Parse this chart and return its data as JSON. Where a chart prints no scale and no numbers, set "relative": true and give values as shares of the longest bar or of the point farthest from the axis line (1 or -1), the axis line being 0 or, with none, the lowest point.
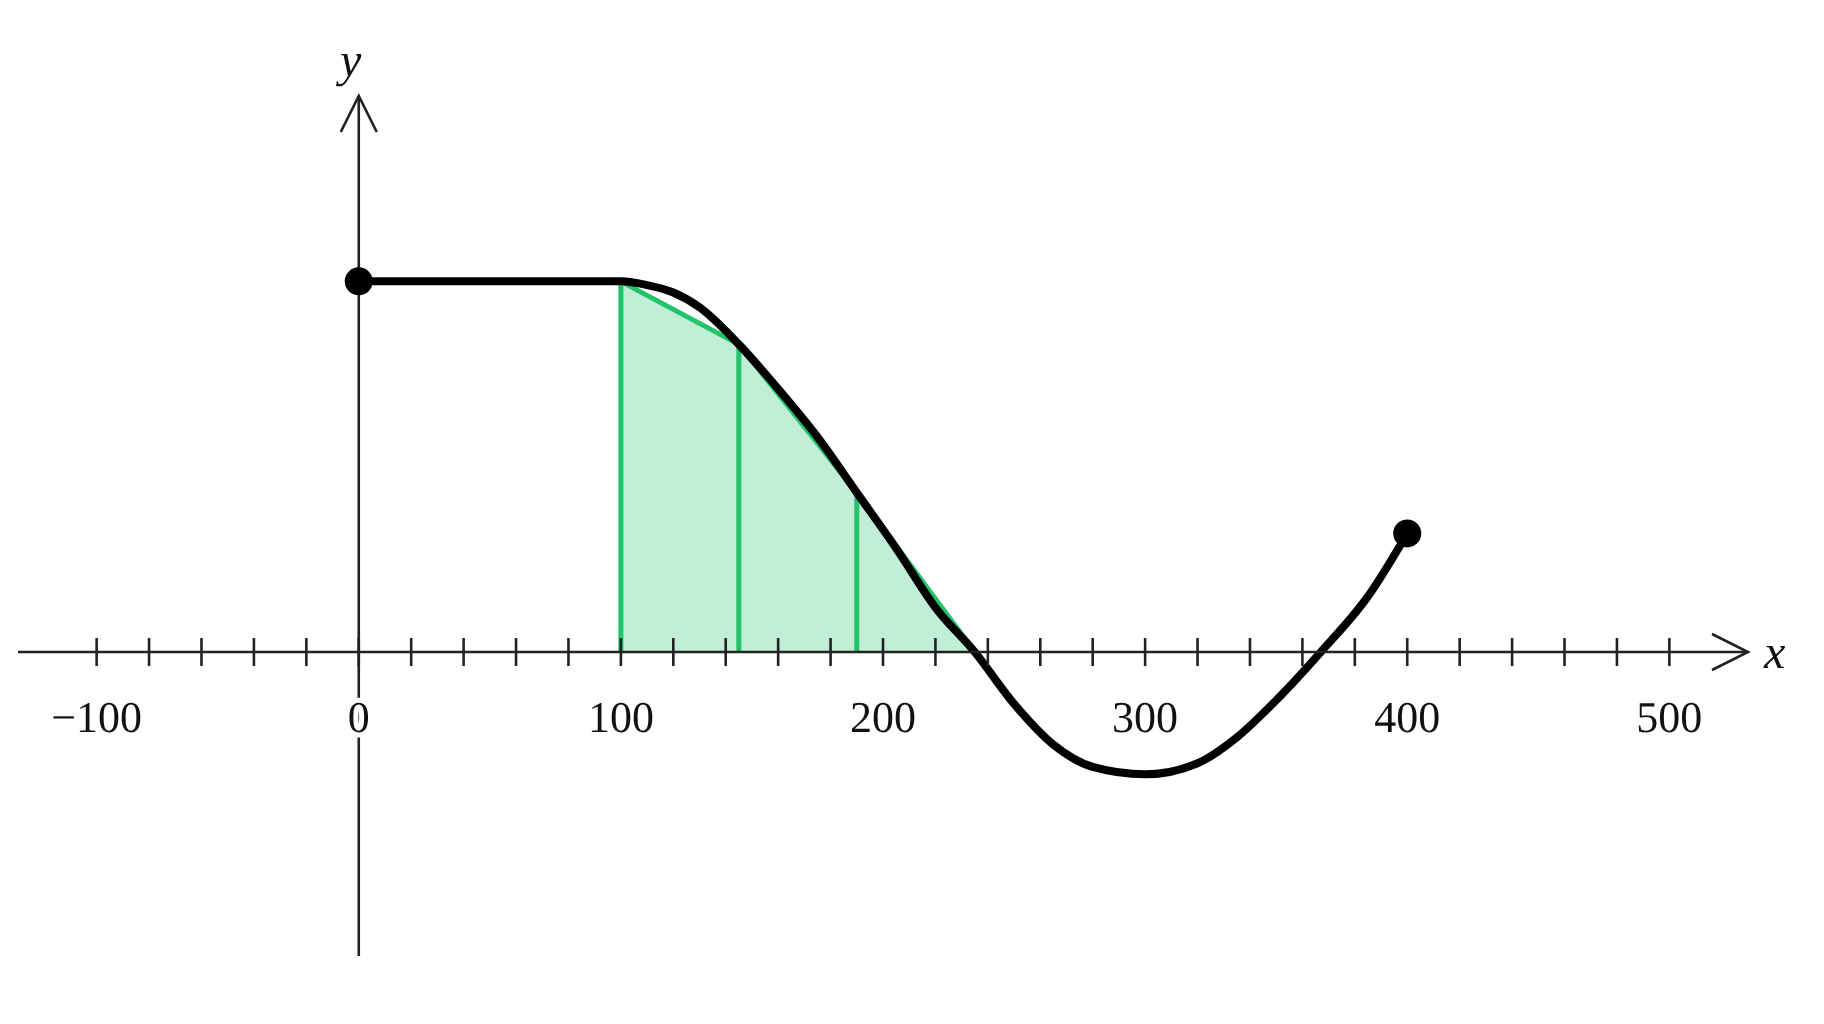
{
  "chart_data": {
    "type": "line",
    "relative": true,
    "xlabel": "x",
    "ylabel": "y",
    "xlim": [
      -130,
      530
    ],
    "xticks": [
      {
        "value": -100,
        "label": "−100"
      },
      {
        "value": -80,
        "label": null
      },
      {
        "value": -60,
        "label": null
      },
      {
        "value": -40,
        "label": null
      },
      {
        "value": -20,
        "label": null
      },
      0,
      {
        "value": 20,
        "label": null
      },
      {
        "value": 40,
        "label": null
      },
      {
        "value": 60,
        "label": null
      },
      {
        "value": 80,
        "label": null
      },
      100,
      {
        "value": 120,
        "label": null
      },
      {
        "value": 140,
        "label": null
      },
      {
        "value": 160,
        "label": null
      },
      {
        "value": 180,
        "label": null
      },
      200,
      {
        "value": 220,
        "label": null
      },
      {
        "value": 240,
        "label": null
      },
      {
        "value": 260,
        "label": null
      },
      {
        "value": 280,
        "label": null
      },
      300,
      {
        "value": 320,
        "label": null
      },
      {
        "value": 340,
        "label": null
      },
      {
        "value": 360,
        "label": null
      },
      {
        "value": 380,
        "label": null
      },
      400,
      {
        "value": 420,
        "label": null
      },
      {
        "value": 440,
        "label": null
      },
      {
        "value": 460,
        "label": null
      },
      {
        "value": 480,
        "label": null
      },
      500
    ],
    "grid": false,
    "legend": false,
    "series": [
      {
        "type": "area",
        "color": "#22c36a",
        "x": [
          100,
          145,
          190,
          235
        ],
        "values": [
          1,
          0.83,
          0.43,
          0
        ]
      },
      {
        "type": "line",
        "color": "#22c36a",
        "x": [
          100,
          100
        ],
        "values": [
          0,
          1
        ]
      },
      {
        "type": "line",
        "color": "#22c36a",
        "x": [
          145,
          145
        ],
        "values": [
          0,
          0.83
        ]
      },
      {
        "type": "line",
        "color": "#22c36a",
        "x": [
          190,
          190
        ],
        "values": [
          0,
          0.43
        ]
      },
      {
        "color": "#000000",
        "x": [
          0,
          50,
          100,
          110,
          120,
          130,
          145,
          160,
          175,
          190,
          205,
          220,
          235,
          250,
          265,
          280,
          300,
          320,
          335,
          350,
          367,
          385,
          400
        ],
        "values": [
          1,
          1,
          1,
          0.99,
          0.97,
          0.93,
          0.83,
          0.71,
          0.58,
          0.43,
          0.28,
          0.12,
          0,
          -0.14,
          -0.25,
          -0.31,
          -0.33,
          -0.3,
          -0.23,
          -0.13,
          0,
          0.15,
          0.32
        ]
      },
      {
        "type": "scatter",
        "color": "#000000",
        "x": [
          0,
          400
        ],
        "values": [
          1,
          0.32
        ]
      }
    ]
  }
}
